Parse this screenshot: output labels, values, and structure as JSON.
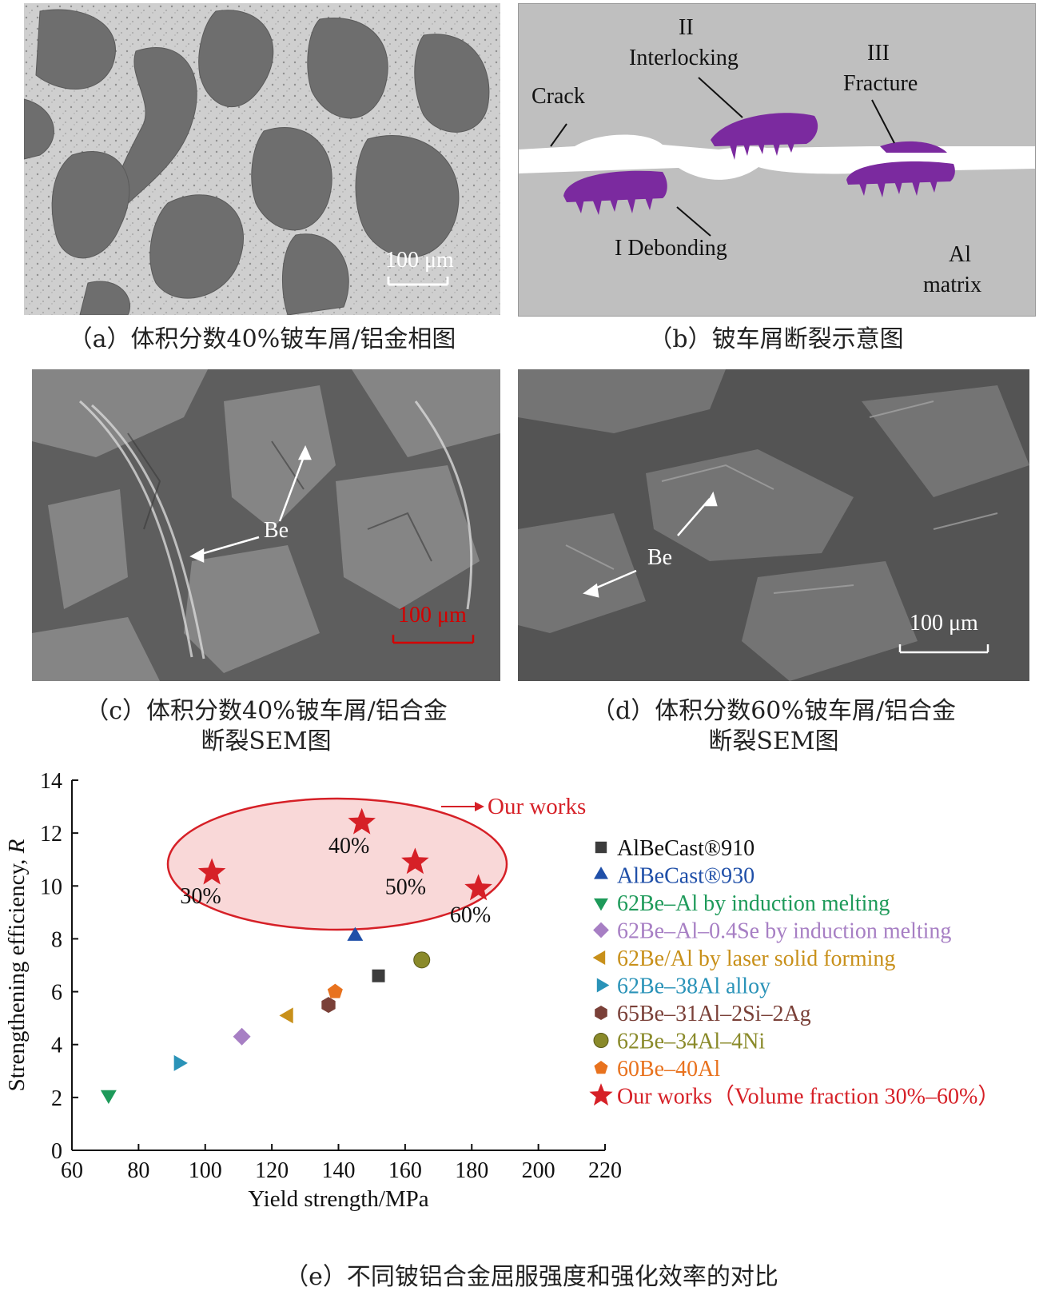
{
  "panel_a": {
    "scale_bar": "100 μm",
    "caption": "（a）体积分数40%铍车屑/铝金相图"
  },
  "panel_b": {
    "label_crack": "Crack",
    "label_ii_num": "II",
    "label_ii": "Interlocking",
    "label_iii_num": "III",
    "label_iii": "Fracture",
    "label_i": "I Debonding",
    "label_al_1": "Al",
    "label_al_2": "matrix",
    "caption": "（b）铍车屑断裂示意图"
  },
  "panel_c": {
    "label_be": "Be",
    "scale_bar": "100 μm",
    "caption_1": "（c）体积分数40%铍车屑/铝合金",
    "caption_2": "断裂SEM图"
  },
  "panel_d": {
    "label_be": "Be",
    "scale_bar": "100 μm",
    "caption_1": "（d）体积分数60%铍车屑/铝合金",
    "caption_2": "断裂SEM图"
  },
  "panel_e": {
    "caption": "（e）不同铍铝合金屈服强度和强化效率的对比"
  },
  "chart_data": {
    "type": "scatter",
    "xlabel": "Yield strength/MPa",
    "ylabel": "Strengthening efficiency, R",
    "xlim": [
      60,
      220
    ],
    "ylim": [
      0,
      14
    ],
    "xticks": [
      60,
      80,
      100,
      120,
      140,
      160,
      180,
      200,
      220
    ],
    "yticks": [
      0,
      2,
      4,
      6,
      8,
      10,
      12,
      14
    ],
    "legend_position": "right",
    "annotation": "Our works",
    "series": [
      {
        "name": "AlBeCast®910",
        "marker": "square",
        "color": "#3c3c3c",
        "points": [
          [
            152,
            6.6
          ]
        ]
      },
      {
        "name": "AlBeCast®930",
        "marker": "triangle-up",
        "color": "#1f4fa8",
        "points": [
          [
            145,
            8.1
          ]
        ]
      },
      {
        "name": "62Be–Al by induction melting",
        "marker": "triangle-down",
        "color": "#1e9a5a",
        "points": [
          [
            71,
            2.1
          ]
        ]
      },
      {
        "name": "62Be–Al–0.4Se by induction melting",
        "marker": "diamond",
        "color": "#a77fc4",
        "points": [
          [
            111,
            4.3
          ]
        ]
      },
      {
        "name": "62Be/Al by laser solid forming",
        "marker": "triangle-left",
        "color": "#c8901a",
        "points": [
          [
            125,
            5.1
          ]
        ]
      },
      {
        "name": "62Be–38Al alloy",
        "marker": "triangle-right",
        "color": "#2a93b8",
        "points": [
          [
            92,
            3.3
          ]
        ]
      },
      {
        "name": "65Be–31Al–2Si–2Ag",
        "marker": "hexagon",
        "color": "#7a4038",
        "points": [
          [
            137,
            5.5
          ]
        ]
      },
      {
        "name": "62Be–34Al–4Ni",
        "marker": "circle",
        "color": "#8a8a2a",
        "points": [
          [
            165,
            7.2
          ]
        ]
      },
      {
        "name": "60Be–40Al",
        "marker": "pentagon",
        "color": "#e8721e",
        "points": [
          [
            139,
            6.0
          ]
        ]
      },
      {
        "name": "Our works（Volume fraction 30%–60%）",
        "marker": "star",
        "color": "#d62027",
        "points": [
          [
            102,
            10.5
          ],
          [
            147,
            12.4
          ],
          [
            163,
            10.9
          ],
          [
            182,
            9.9
          ]
        ],
        "labels": [
          "30%",
          "40%",
          "50%",
          "60%"
        ]
      }
    ]
  }
}
